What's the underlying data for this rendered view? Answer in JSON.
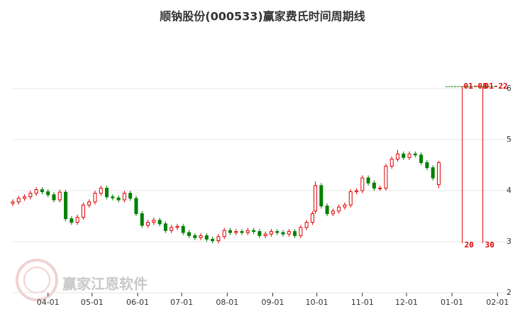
{
  "chart_data": {
    "type": "candlestick",
    "title": "顺钠股份(000533)赢家费氏时间周期线",
    "watermark": "赢家江恩软件",
    "xlim": [
      -24,
      315
    ],
    "ylim": [
      2,
      7
    ],
    "xticks": [
      {
        "value": 0,
        "label": "04-01"
      },
      {
        "value": 30,
        "label": "05-01"
      },
      {
        "value": 61,
        "label": "06-01"
      },
      {
        "value": 91,
        "label": "07-01"
      },
      {
        "value": 122,
        "label": "08-01"
      },
      {
        "value": 153,
        "label": "09-01"
      },
      {
        "value": 183,
        "label": "10-01"
      },
      {
        "value": 214,
        "label": "11-01"
      },
      {
        "value": 244,
        "label": "12-01"
      },
      {
        "value": 275,
        "label": "01-01"
      },
      {
        "value": 306,
        "label": "02-01"
      }
    ],
    "yticks": [
      2,
      3,
      4,
      5,
      6
    ],
    "grid": true,
    "up_color": "#e00000",
    "down_color": "#008000",
    "x": [
      -24,
      -20,
      -16,
      -12,
      -8,
      -4,
      0,
      4,
      8,
      12,
      16,
      20,
      24,
      28,
      32,
      36,
      40,
      44,
      48,
      52,
      56,
      60,
      64,
      68,
      72,
      76,
      80,
      84,
      88,
      92,
      96,
      100,
      104,
      108,
      112,
      116,
      120,
      124,
      128,
      132,
      136,
      140,
      144,
      148,
      152,
      156,
      160,
      164,
      168,
      172,
      176,
      180,
      182,
      186,
      190,
      194,
      198,
      202,
      206,
      210,
      214,
      218,
      222,
      226,
      230,
      234,
      238,
      242,
      246,
      250,
      254,
      258,
      262,
      266
    ],
    "open": [
      3.75,
      3.78,
      3.85,
      3.88,
      3.95,
      4.02,
      3.98,
      3.92,
      3.82,
      3.97,
      3.45,
      3.38,
      3.48,
      3.72,
      3.78,
      3.95,
      4.05,
      3.88,
      3.86,
      3.82,
      3.95,
      3.85,
      3.55,
      3.32,
      3.38,
      3.42,
      3.35,
      3.22,
      3.28,
      3.3,
      3.18,
      3.12,
      3.08,
      3.12,
      3.05,
      3.02,
      3.1,
      3.22,
      3.18,
      3.2,
      3.18,
      3.22,
      3.2,
      3.12,
      3.15,
      3.2,
      3.18,
      3.15,
      3.2,
      3.12,
      3.28,
      3.38,
      3.6,
      4.1,
      3.7,
      3.55,
      3.6,
      3.68,
      3.72,
      3.98,
      4.0,
      4.25,
      4.15,
      4.05,
      4.05,
      4.48,
      4.62,
      4.72,
      4.65,
      4.72,
      4.7,
      4.55,
      4.45,
      4.12
    ],
    "high": [
      3.83,
      3.9,
      3.93,
      4.0,
      4.07,
      4.07,
      4.03,
      3.97,
      4.02,
      4.02,
      3.5,
      3.53,
      3.77,
      3.83,
      4.0,
      4.1,
      4.1,
      3.93,
      3.91,
      4.0,
      4.0,
      3.9,
      3.6,
      3.43,
      3.47,
      3.47,
      3.4,
      3.33,
      3.35,
      3.35,
      3.23,
      3.17,
      3.17,
      3.17,
      3.1,
      3.15,
      3.27,
      3.27,
      3.25,
      3.25,
      3.27,
      3.27,
      3.25,
      3.2,
      3.25,
      3.25,
      3.23,
      3.25,
      3.25,
      3.33,
      3.43,
      3.6,
      4.18,
      4.15,
      3.75,
      3.65,
      3.73,
      3.77,
      4.03,
      4.05,
      4.3,
      4.3,
      4.2,
      4.1,
      4.53,
      4.67,
      4.8,
      4.77,
      4.77,
      4.77,
      4.75,
      4.6,
      4.5,
      4.58
    ],
    "low": [
      3.7,
      3.73,
      3.8,
      3.83,
      3.9,
      3.93,
      3.87,
      3.77,
      3.77,
      3.4,
      3.33,
      3.33,
      3.43,
      3.67,
      3.73,
      3.9,
      3.83,
      3.81,
      3.77,
      3.77,
      3.8,
      3.5,
      3.27,
      3.27,
      3.33,
      3.3,
      3.17,
      3.17,
      3.23,
      3.13,
      3.07,
      3.03,
      3.03,
      3.0,
      2.97,
      2.97,
      3.05,
      3.13,
      3.13,
      3.13,
      3.13,
      3.15,
      3.07,
      3.07,
      3.1,
      3.13,
      3.1,
      3.1,
      3.07,
      3.07,
      3.23,
      3.33,
      3.55,
      3.65,
      3.5,
      3.5,
      3.55,
      3.63,
      3.67,
      3.93,
      3.95,
      4.1,
      4.0,
      4.0,
      4.0,
      4.43,
      4.57,
      4.6,
      4.6,
      4.65,
      4.5,
      4.4,
      4.2,
      4.05
    ],
    "close": [
      3.78,
      3.85,
      3.88,
      3.95,
      4.02,
      3.98,
      3.92,
      3.82,
      3.97,
      3.45,
      3.38,
      3.48,
      3.72,
      3.78,
      3.95,
      4.05,
      3.88,
      3.86,
      3.82,
      3.95,
      3.85,
      3.55,
      3.32,
      3.38,
      3.42,
      3.35,
      3.22,
      3.28,
      3.3,
      3.18,
      3.12,
      3.08,
      3.12,
      3.05,
      3.02,
      3.1,
      3.22,
      3.18,
      3.2,
      3.18,
      3.22,
      3.2,
      3.12,
      3.15,
      3.2,
      3.18,
      3.15,
      3.2,
      3.12,
      3.28,
      3.38,
      3.55,
      4.1,
      3.7,
      3.55,
      3.6,
      3.68,
      3.72,
      3.98,
      4.0,
      4.25,
      4.15,
      4.05,
      4.05,
      4.48,
      4.62,
      4.72,
      4.65,
      4.72,
      4.7,
      4.55,
      4.45,
      4.25,
      4.55
    ],
    "cycle_level": 6.04,
    "cycle_base": 2.97,
    "cycle_color": "#e00000",
    "level_color": "#008000",
    "annotations": [
      {
        "x": 282,
        "label": "01-08",
        "count": 20
      },
      {
        "x": 296,
        "label": "01-22",
        "count": 30
      }
    ]
  }
}
